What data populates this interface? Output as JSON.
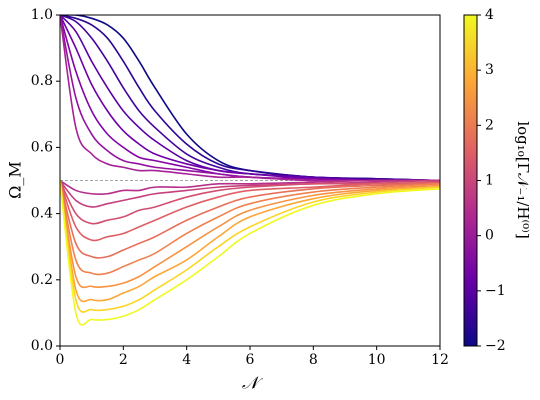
{
  "chart_data": {
    "type": "line",
    "xlabel": "𝒩",
    "ylabel": "Ω_M",
    "x": [
      0,
      0.5,
      1,
      1.5,
      2,
      2.5,
      3,
      4,
      5,
      6,
      8,
      10,
      12
    ],
    "xlim": [
      0,
      12
    ],
    "xticks": [
      0,
      2,
      4,
      6,
      8,
      10,
      12
    ],
    "ylim": [
      0,
      1
    ],
    "yticks": [
      {
        "value": 0,
        "label": "0.0"
      },
      0.2,
      0.4,
      0.6,
      0.8,
      {
        "value": 1,
        "label": "1.0"
      }
    ],
    "hline": {
      "value": 0.5,
      "color": "#888888"
    },
    "series": [
      {
        "color": "#0d0887",
        "values": [
          1.0,
          1.0,
          0.99,
          0.97,
          0.93,
          0.86,
          0.78,
          0.64,
          0.56,
          0.53,
          0.51,
          0.505,
          0.5
        ]
      },
      {
        "color": "#2c0594",
        "values": [
          1.0,
          0.99,
          0.97,
          0.93,
          0.86,
          0.78,
          0.71,
          0.61,
          0.55,
          0.53,
          0.51,
          0.505,
          0.5
        ]
      },
      {
        "color": "#43039e",
        "values": [
          1.0,
          0.98,
          0.93,
          0.86,
          0.78,
          0.71,
          0.66,
          0.58,
          0.54,
          0.52,
          0.51,
          0.505,
          0.5
        ]
      },
      {
        "color": "#5901a5",
        "values": [
          1.0,
          0.95,
          0.86,
          0.78,
          0.71,
          0.66,
          0.62,
          0.56,
          0.53,
          0.52,
          0.51,
          0.5,
          0.5
        ]
      },
      {
        "color": "#6e00a8",
        "values": [
          1.0,
          0.9,
          0.79,
          0.71,
          0.65,
          0.61,
          0.58,
          0.55,
          0.53,
          0.52,
          0.505,
          0.5,
          0.5
        ]
      },
      {
        "color": "#8305a7",
        "values": [
          1.0,
          0.83,
          0.71,
          0.64,
          0.6,
          0.57,
          0.56,
          0.54,
          0.52,
          0.51,
          0.505,
          0.5,
          0.5
        ]
      },
      {
        "color": "#9511a1",
        "values": [
          1.0,
          0.75,
          0.64,
          0.59,
          0.56,
          0.55,
          0.54,
          0.53,
          0.52,
          0.51,
          0.5,
          0.5,
          0.5
        ]
      },
      {
        "color": "#a72197",
        "values": [
          1.0,
          0.66,
          0.58,
          0.55,
          0.54,
          0.53,
          0.53,
          0.52,
          0.51,
          0.51,
          0.5,
          0.5,
          0.5
        ]
      },
      {
        "color": "#b6308b",
        "values": [
          0.5,
          0.47,
          0.46,
          0.46,
          0.47,
          0.47,
          0.48,
          0.48,
          0.49,
          0.49,
          0.495,
          0.5,
          0.5
        ]
      },
      {
        "color": "#c5407e",
        "values": [
          0.5,
          0.44,
          0.42,
          0.43,
          0.44,
          0.45,
          0.46,
          0.47,
          0.48,
          0.485,
          0.49,
          0.495,
          0.5
        ]
      },
      {
        "color": "#d24f71",
        "values": [
          0.5,
          0.4,
          0.37,
          0.38,
          0.39,
          0.41,
          0.42,
          0.45,
          0.47,
          0.48,
          0.49,
          0.49,
          0.495
        ]
      },
      {
        "color": "#de5f65",
        "values": [
          0.5,
          0.36,
          0.32,
          0.33,
          0.34,
          0.36,
          0.38,
          0.42,
          0.45,
          0.47,
          0.48,
          0.49,
          0.495
        ]
      },
      {
        "color": "#e76f5a",
        "values": [
          0.5,
          0.31,
          0.27,
          0.27,
          0.29,
          0.31,
          0.33,
          0.38,
          0.42,
          0.45,
          0.475,
          0.485,
          0.49
        ]
      },
      {
        "color": "#f0804e",
        "values": [
          0.5,
          0.26,
          0.22,
          0.22,
          0.24,
          0.26,
          0.28,
          0.34,
          0.39,
          0.43,
          0.465,
          0.48,
          0.49
        ]
      },
      {
        "color": "#f79342",
        "values": [
          0.5,
          0.21,
          0.18,
          0.18,
          0.19,
          0.21,
          0.24,
          0.3,
          0.36,
          0.41,
          0.455,
          0.475,
          0.485
        ]
      },
      {
        "color": "#fca636",
        "values": [
          0.5,
          0.17,
          0.14,
          0.14,
          0.16,
          0.18,
          0.21,
          0.26,
          0.33,
          0.39,
          0.445,
          0.47,
          0.48
        ]
      },
      {
        "color": "#fbd524",
        "values": [
          0.5,
          0.14,
          0.11,
          0.11,
          0.12,
          0.14,
          0.17,
          0.23,
          0.3,
          0.36,
          0.435,
          0.465,
          0.48
        ]
      },
      {
        "color": "#f0f921",
        "values": [
          0.5,
          0.1,
          0.08,
          0.08,
          0.09,
          0.11,
          0.14,
          0.2,
          0.27,
          0.34,
          0.425,
          0.46,
          0.475
        ]
      }
    ],
    "colorbar": {
      "label": "log₁₀[Γ𝒩₋₁/H⁽⁰⁾]",
      "lim": [
        -2,
        4
      ],
      "ticks": [
        {
          "value": -2,
          "label": "−2"
        },
        {
          "value": -1,
          "label": "−1"
        },
        0,
        1,
        2,
        3,
        4
      ],
      "colormap": [
        "#0d0887",
        "#6a00a8",
        "#b12a90",
        "#e16462",
        "#fca636",
        "#f0f921"
      ]
    }
  }
}
